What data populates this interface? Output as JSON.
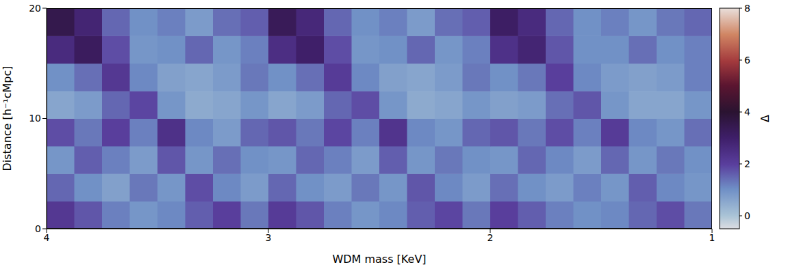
{
  "chart_data": {
    "type": "heatmap",
    "xlabel": "WDM mass [KeV]",
    "ylabel": "Distance [h⁻¹cMpc]",
    "xlim": [
      4,
      1
    ],
    "xticks": [
      4,
      3,
      2,
      1
    ],
    "ylim": [
      0,
      20
    ],
    "yticks": [
      0,
      10,
      20
    ],
    "x": [
      3.9375,
      3.8125,
      3.6875,
      3.5625,
      3.4375,
      3.3125,
      3.1875,
      3.0625,
      2.9375,
      2.8125,
      2.6875,
      2.5625,
      2.4375,
      2.3125,
      2.1875,
      2.0625,
      1.9375,
      1.8125,
      1.6875,
      1.5625,
      1.4375,
      1.3125,
      1.1875,
      1.0625
    ],
    "y": [
      1.25,
      3.75,
      6.25,
      8.75,
      11.25,
      13.75,
      16.25,
      18.75
    ],
    "values": [
      [
        2.2,
        1.7,
        1.2,
        0.9,
        1.1,
        1.6,
        2.0,
        1.3,
        2.1,
        1.7,
        1.2,
        0.9,
        1.1,
        1.6,
        1.9,
        1.3,
        2.0,
        1.6,
        1.2,
        1.0,
        1.1,
        1.5,
        1.8,
        1.3
      ],
      [
        1.5,
        1.0,
        0.7,
        1.3,
        0.9,
        1.8,
        1.1,
        0.8,
        1.5,
        1.0,
        0.8,
        1.3,
        0.9,
        1.7,
        1.1,
        0.8,
        1.4,
        1.0,
        0.8,
        1.2,
        0.9,
        1.6,
        1.1,
        0.9
      ],
      [
        0.9,
        1.6,
        1.2,
        0.8,
        1.7,
        0.9,
        1.4,
        1.0,
        0.9,
        1.5,
        1.2,
        0.8,
        1.6,
        0.9,
        1.3,
        1.0,
        0.9,
        1.5,
        1.1,
        0.8,
        1.5,
        0.9,
        1.3,
        1.0
      ],
      [
        1.8,
        1.3,
        2.0,
        1.2,
        2.4,
        1.1,
        0.8,
        1.5,
        1.7,
        1.3,
        1.9,
        1.2,
        2.3,
        1.1,
        0.9,
        1.5,
        1.7,
        1.3,
        1.8,
        1.2,
        2.1,
        1.1,
        0.9,
        1.4
      ],
      [
        0.6,
        0.8,
        1.5,
        1.9,
        0.9,
        0.5,
        0.6,
        0.9,
        0.6,
        0.8,
        1.5,
        1.8,
        0.9,
        0.5,
        0.6,
        0.9,
        0.7,
        0.8,
        1.4,
        1.7,
        0.9,
        0.6,
        0.6,
        0.9
      ],
      [
        1.0,
        1.4,
        2.2,
        1.1,
        0.7,
        0.6,
        0.8,
        1.3,
        1.0,
        1.4,
        2.1,
        1.1,
        0.7,
        0.6,
        0.8,
        1.3,
        1.0,
        1.3,
        2.0,
        1.1,
        0.8,
        0.7,
        0.8,
        1.2
      ],
      [
        2.6,
        3.2,
        1.8,
        0.9,
        1.0,
        1.5,
        0.9,
        1.2,
        2.5,
        3.0,
        1.8,
        0.9,
        1.0,
        1.5,
        0.9,
        1.2,
        2.4,
        2.8,
        1.7,
        1.0,
        1.0,
        1.4,
        1.0,
        1.2
      ],
      [
        3.5,
        2.8,
        1.5,
        1.0,
        1.2,
        0.8,
        1.4,
        1.6,
        3.3,
        2.7,
        1.5,
        1.0,
        1.2,
        0.8,
        1.4,
        1.6,
        3.1,
        2.6,
        1.5,
        1.0,
        1.2,
        0.9,
        1.3,
        1.5
      ]
    ],
    "colorbar": {
      "label": "Δ",
      "range": [
        -0.5,
        8
      ],
      "ticks": [
        0,
        2,
        4,
        6,
        8
      ]
    }
  }
}
